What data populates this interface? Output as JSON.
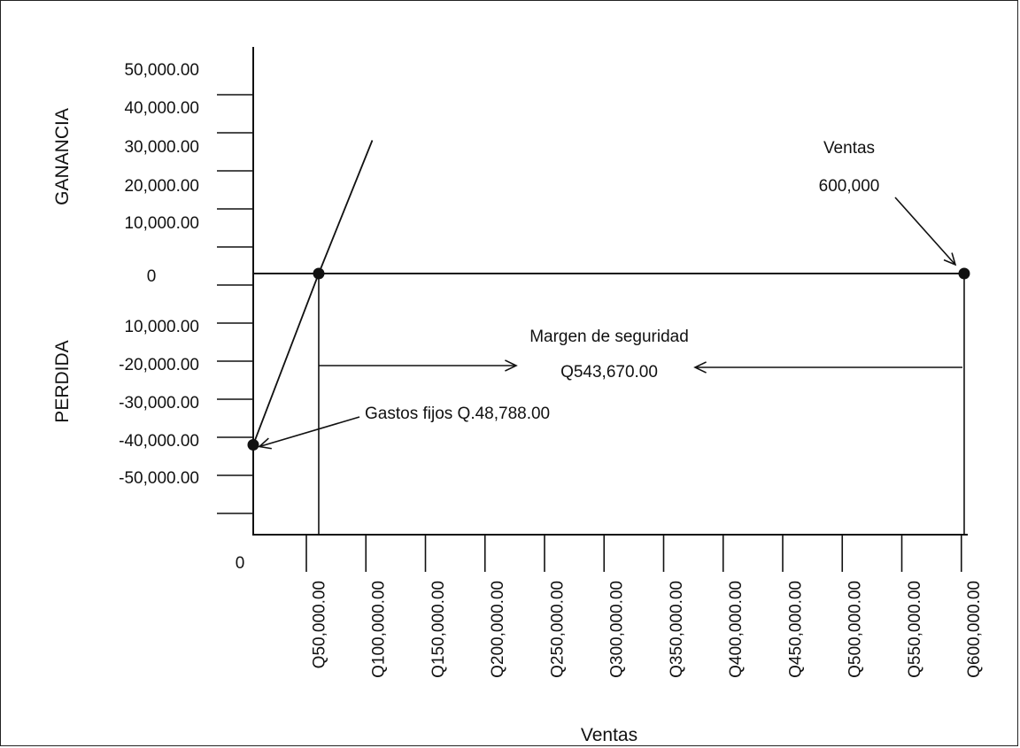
{
  "chart_data": {
    "type": "line",
    "title": "",
    "xlabel": "Ventas",
    "ylabel_top": "GANANCIA",
    "ylabel_bottom": "PERDIDA",
    "x_origin_label": "0",
    "x_tick_labels": [
      "Q50,000.00",
      "Q100,000.00",
      "Q150,000.00",
      "Q200,000.00",
      "Q250,000.00",
      "Q300,000.00",
      "Q350,000.00",
      "Q400,000.00",
      "Q450,000.00",
      "Q500,000.00",
      "Q550,000.00",
      "Q600,000.00"
    ],
    "y_tick_labels": [
      "50,000.00",
      "40,000.00",
      "30,000.00",
      "20,000.00",
      "10,000.00",
      "0",
      "10,000.00",
      "-20,000.00",
      "-30,000.00",
      "-40,000.00",
      "-50,000.00"
    ],
    "xlim": [
      0,
      600000
    ],
    "ylim": [
      -60000,
      60000
    ],
    "grid": false,
    "legend": "none",
    "series": [
      {
        "x": [
          0,
          55000,
          100000
        ],
        "y": [
          -45000,
          0,
          35000
        ]
      }
    ],
    "points": [
      {
        "x": 0,
        "y": -45000
      },
      {
        "x": 55000,
        "y": 0
      },
      {
        "x": 597000,
        "y": 0
      }
    ],
    "annotations": {
      "fixed_costs": "Gastos fijos Q.48,788.00",
      "sales_title": "Ventas",
      "sales_value": "600,000",
      "safety_margin_title": "Margen de seguridad",
      "safety_margin_value": "Q543,670.00"
    }
  }
}
